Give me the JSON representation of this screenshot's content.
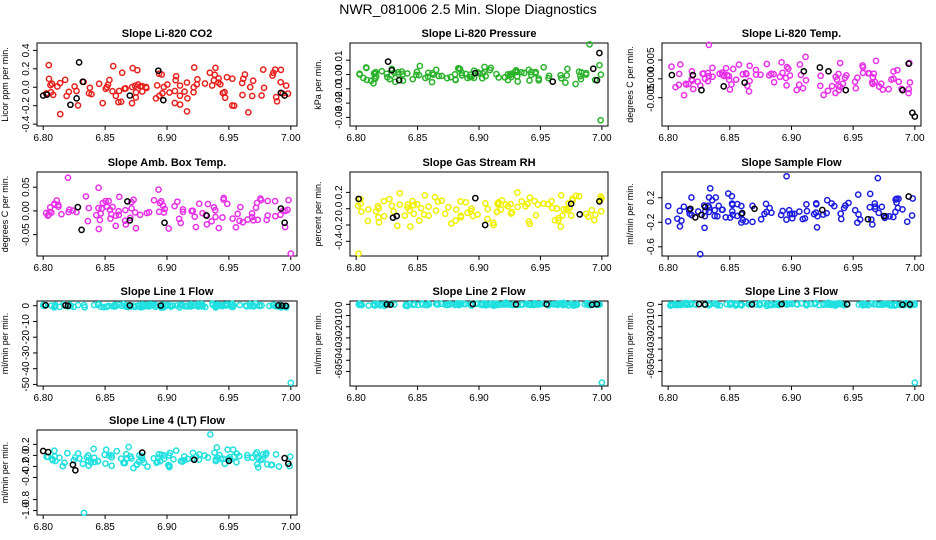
{
  "page_title": "NWR_081006  2.5 Min. Slope Diagnostics",
  "colors": {
    "red": "#e8201c",
    "green": "#2ab32a",
    "magenta": "#e830e8",
    "yellow": "#f0f000",
    "blue": "#1c1ce0",
    "cyan": "#20e0e0",
    "black": "#000000"
  },
  "chart_data": [
    {
      "type": "scatter",
      "title": "Slope Li-820 CO2",
      "ylabel": "Licor ppm per min.",
      "color": "#e8201c",
      "xlim": [
        6.795,
        7.005
      ],
      "ylim": [
        -0.42,
        0.48
      ],
      "xticks": [
        6.8,
        6.85,
        6.9,
        6.95,
        7.0
      ],
      "xtick_labels": [
        "6.80",
        "6.85",
        "6.90",
        "6.95",
        "7.00"
      ],
      "yticks": [
        -0.4,
        -0.2,
        0.0,
        0.2,
        0.4
      ],
      "ytick_labels": [
        "-0.4",
        "-0.2",
        "0.0",
        "0.2",
        "0.4"
      ],
      "seed": 11,
      "n": 110,
      "center": 0.0,
      "spread": 0.18,
      "black_points": [
        [
          6.8,
          -0.09
        ],
        [
          6.803,
          -0.08
        ],
        [
          6.822,
          -0.19
        ],
        [
          6.827,
          -0.12
        ],
        [
          6.829,
          0.27
        ],
        [
          6.832,
          0.06
        ],
        [
          6.87,
          -0.09
        ],
        [
          6.893,
          0.18
        ],
        [
          6.897,
          -0.14
        ],
        [
          6.992,
          -0.06
        ],
        [
          6.995,
          -0.09
        ]
      ]
    },
    {
      "type": "scatter",
      "title": "Slope Li-820 Pressure",
      "ylabel": "kPa per min.",
      "color": "#2ab32a",
      "xlim": [
        6.795,
        7.005
      ],
      "ylim": [
        -0.036,
        0.022
      ],
      "xticks": [
        6.8,
        6.85,
        6.9,
        6.95,
        7.0
      ],
      "xtick_labels": [
        "6.80",
        "6.85",
        "6.90",
        "6.95",
        "7.00"
      ],
      "yticks": [
        -0.03,
        -0.02,
        -0.01,
        0.0,
        0.01
      ],
      "ytick_labels": [
        "-0.03",
        "-0.02",
        "-0.01",
        "0.00",
        "0.01"
      ],
      "seed": 23,
      "n": 110,
      "center": 0.0,
      "spread": 0.005,
      "outliers": [
        [
          6.99,
          0.021
        ],
        [
          6.999,
          -0.032
        ]
      ],
      "black_points": [
        [
          6.826,
          0.009
        ],
        [
          6.829,
          0.003
        ],
        [
          6.835,
          -0.004
        ],
        [
          6.897,
          0.001
        ],
        [
          6.96,
          -0.005
        ],
        [
          6.993,
          0.004
        ],
        [
          6.996,
          -0.004
        ],
        [
          6.998,
          0.015
        ]
      ]
    },
    {
      "type": "scatter",
      "title": "Slope Li-820 Temp.",
      "ylabel": "degrees C per min.",
      "color": "#e830e8",
      "xlim": [
        6.795,
        7.005
      ],
      "ylim": [
        -0.0125,
        0.0095
      ],
      "xticks": [
        6.8,
        6.85,
        6.9,
        6.95,
        7.0
      ],
      "xtick_labels": [
        "6.80",
        "6.85",
        "6.90",
        "6.95",
        "7.00"
      ],
      "yticks": [
        -0.005,
        0.0,
        0.005
      ],
      "ytick_labels": [
        "-0.005",
        "0.000",
        "0.005"
      ],
      "seed": 37,
      "n": 110,
      "center": 0.0,
      "spread": 0.0035,
      "outliers": [
        [
          6.833,
          0.009
        ]
      ],
      "black_points": [
        [
          6.803,
          0.001
        ],
        [
          6.82,
          0.001
        ],
        [
          6.827,
          -0.003
        ],
        [
          6.845,
          -0.002
        ],
        [
          6.862,
          -0.001
        ],
        [
          6.91,
          0.002
        ],
        [
          6.923,
          0.003
        ],
        [
          6.93,
          0.002
        ],
        [
          6.944,
          -0.003
        ],
        [
          6.99,
          -0.003
        ],
        [
          6.995,
          0.004
        ],
        [
          6.998,
          -0.009
        ],
        [
          7.0,
          -0.01
        ]
      ]
    },
    {
      "type": "scatter",
      "title": "Slope Amb. Box Temp.",
      "ylabel": "degrees C per min.",
      "color": "#e830e8",
      "xlim": [
        6.795,
        7.005
      ],
      "ylim": [
        -0.095,
        0.082
      ],
      "xticks": [
        6.8,
        6.85,
        6.9,
        6.95,
        7.0
      ],
      "xtick_labels": [
        "6.80",
        "6.85",
        "6.90",
        "6.95",
        "7.00"
      ],
      "yticks": [
        -0.05,
        0.0,
        0.05
      ],
      "ytick_labels": [
        "-0.05",
        "0.00",
        "0.05"
      ],
      "seed": 41,
      "n": 110,
      "center": 0.0,
      "spread": 0.03,
      "outliers": [
        [
          7.0,
          -0.09
        ],
        [
          6.82,
          0.07
        ]
      ],
      "black_points": [
        [
          6.828,
          0.008
        ],
        [
          6.831,
          -0.04
        ],
        [
          6.868,
          0.02
        ],
        [
          6.87,
          -0.02
        ],
        [
          6.898,
          -0.025
        ],
        [
          6.932,
          -0.01
        ],
        [
          6.992,
          0.005
        ],
        [
          6.995,
          -0.025
        ]
      ]
    },
    {
      "type": "scatter",
      "title": "Slope Gas Stream RH",
      "ylabel": "percent per min.",
      "color": "#f0f000",
      "xlim": [
        6.795,
        7.005
      ],
      "ylim": [
        -0.58,
        0.45
      ],
      "xticks": [
        6.8,
        6.85,
        6.9,
        6.95,
        7.0
      ],
      "xtick_labels": [
        "6.80",
        "6.85",
        "6.90",
        "6.95",
        "7.00"
      ],
      "yticks": [
        -0.4,
        -0.2,
        0.0,
        0.2
      ],
      "ytick_labels": [
        "-0.4",
        "-0.2",
        "0.0",
        "0.2"
      ],
      "seed": 53,
      "n": 110,
      "center": 0.0,
      "spread": 0.18,
      "outliers": [
        [
          6.802,
          -0.55
        ]
      ],
      "black_points": [
        [
          6.802,
          0.12
        ],
        [
          6.83,
          -0.11
        ],
        [
          6.833,
          -0.09
        ],
        [
          6.897,
          0.13
        ],
        [
          6.905,
          -0.2
        ],
        [
          6.975,
          0.06
        ],
        [
          6.982,
          -0.07
        ],
        [
          6.998,
          0.09
        ]
      ]
    },
    {
      "type": "scatter",
      "title": "Slope Sample Flow",
      "ylabel": "ml/min per min.",
      "color": "#1c1ce0",
      "xlim": [
        6.795,
        7.005
      ],
      "ylim": [
        -0.75,
        0.62
      ],
      "xticks": [
        6.8,
        6.85,
        6.9,
        6.95,
        7.0
      ],
      "xtick_labels": [
        "6.80",
        "6.85",
        "6.90",
        "6.95",
        "7.00"
      ],
      "yticks": [
        -0.6,
        -0.2,
        0.2
      ],
      "ytick_labels": [
        "-0.6",
        "-0.2",
        "0.2"
      ],
      "seed": 67,
      "n": 110,
      "center": 0.0,
      "spread": 0.22,
      "outliers": [
        [
          6.826,
          -0.72
        ],
        [
          6.896,
          0.55
        ],
        [
          6.97,
          0.52
        ]
      ],
      "black_points": [
        [
          6.818,
          0.02
        ],
        [
          6.822,
          -0.12
        ],
        [
          6.827,
          -0.08
        ],
        [
          6.83,
          0.05
        ],
        [
          6.86,
          -0.05
        ],
        [
          6.87,
          0.02
        ],
        [
          6.925,
          0.0
        ],
        [
          6.962,
          -0.15
        ],
        [
          6.975,
          -0.1
        ],
        [
          6.995,
          0.22
        ]
      ]
    },
    {
      "type": "scatter",
      "title": "Slope Line 1 Flow",
      "ylabel": "ml/min per min.",
      "color": "#20e0e0",
      "xlim": [
        6.795,
        7.005
      ],
      "ylim": [
        -51,
        3
      ],
      "xticks": [
        6.8,
        6.85,
        6.9,
        6.95,
        7.0
      ],
      "xtick_labels": [
        "6.80",
        "6.85",
        "6.90",
        "6.95",
        "7.00"
      ],
      "yticks": [
        -50,
        -40,
        -30,
        -20,
        -10,
        0
      ],
      "ytick_labels": [
        "-50",
        "-40",
        "-30",
        "-20",
        "-10",
        "0"
      ],
      "seed": 71,
      "n": 150,
      "center": 0.0,
      "spread": 0.9,
      "outliers": [
        [
          7.0,
          -49
        ]
      ],
      "black_points": [
        [
          6.802,
          0.3
        ],
        [
          6.818,
          0.2
        ],
        [
          6.82,
          0.0
        ],
        [
          6.87,
          0.2
        ],
        [
          6.895,
          0.1
        ],
        [
          6.99,
          0.2
        ],
        [
          6.993,
          0.1
        ],
        [
          6.996,
          -0.1
        ]
      ]
    },
    {
      "type": "scatter",
      "title": "Slope Line 2 Flow",
      "ylabel": "ml/min per min.",
      "color": "#20e0e0",
      "xlim": [
        6.795,
        7.005
      ],
      "ylim": [
        -73,
        3
      ],
      "xticks": [
        6.8,
        6.85,
        6.9,
        6.95,
        7.0
      ],
      "xtick_labels": [
        "6.80",
        "6.85",
        "6.90",
        "6.95",
        "7.00"
      ],
      "yticks": [
        -60,
        -50,
        -40,
        -30,
        -20,
        -10,
        0
      ],
      "ytick_labels": [
        "-60",
        "-50",
        "-40",
        "-30",
        "-20",
        "-10",
        "0"
      ],
      "seed": 83,
      "n": 150,
      "center": 0.0,
      "spread": 0.9,
      "outliers": [
        [
          7.0,
          -70
        ]
      ],
      "black_points": [
        [
          6.825,
          0.0
        ],
        [
          6.828,
          -0.2
        ],
        [
          6.895,
          0.3
        ],
        [
          6.93,
          0.0
        ],
        [
          6.955,
          0.1
        ],
        [
          6.992,
          -0.3
        ],
        [
          6.996,
          0.2
        ]
      ]
    },
    {
      "type": "scatter",
      "title": "Slope Line 3 Flow",
      "ylabel": "ml/min per min.",
      "color": "#20e0e0",
      "xlim": [
        6.795,
        7.005
      ],
      "ylim": [
        -73,
        3
      ],
      "xticks": [
        6.8,
        6.85,
        6.9,
        6.95,
        7.0
      ],
      "xtick_labels": [
        "6.80",
        "6.85",
        "6.90",
        "6.95",
        "7.00"
      ],
      "yticks": [
        -60,
        -50,
        -40,
        -30,
        -20,
        -10,
        0
      ],
      "ytick_labels": [
        "-60",
        "-50",
        "-40",
        "-30",
        "-20",
        "-10",
        "0"
      ],
      "seed": 97,
      "n": 150,
      "center": 0.0,
      "spread": 0.9,
      "outliers": [
        [
          7.0,
          -70
        ]
      ],
      "black_points": [
        [
          6.825,
          0.2
        ],
        [
          6.83,
          -0.1
        ],
        [
          6.868,
          0.0
        ],
        [
          6.892,
          0.2
        ],
        [
          6.945,
          0.1
        ],
        [
          6.99,
          -0.2
        ],
        [
          6.996,
          0.0
        ]
      ]
    },
    {
      "type": "scatter",
      "title": "Slope Line 4 (LT) Flow",
      "ylabel": "ml/min per min.",
      "color": "#20e0e0",
      "xlim": [
        6.795,
        7.005
      ],
      "ylim": [
        -1.08,
        0.46
      ],
      "xticks": [
        6.8,
        6.85,
        6.9,
        6.95,
        7.0
      ],
      "xtick_labels": [
        "6.80",
        "6.85",
        "6.90",
        "6.95",
        "7.00"
      ],
      "yticks": [
        -1.0,
        -0.8,
        -0.4,
        -0.2,
        0.0,
        0.2
      ],
      "ytick_labels": [
        "-1.0",
        "-0.8",
        "-0.4",
        "-0.2",
        "0.0",
        "0.2"
      ],
      "seed": 101,
      "n": 120,
      "center": -0.05,
      "spread": 0.14,
      "outliers": [
        [
          6.833,
          -1.04
        ],
        [
          6.935,
          0.38
        ]
      ],
      "black_points": [
        [
          6.8,
          0.08
        ],
        [
          6.804,
          0.06
        ],
        [
          6.824,
          -0.17
        ],
        [
          6.826,
          -0.27
        ],
        [
          6.88,
          0.05
        ],
        [
          6.922,
          -0.08
        ],
        [
          6.95,
          -0.1
        ],
        [
          6.995,
          -0.05
        ],
        [
          6.998,
          -0.15
        ]
      ]
    }
  ]
}
